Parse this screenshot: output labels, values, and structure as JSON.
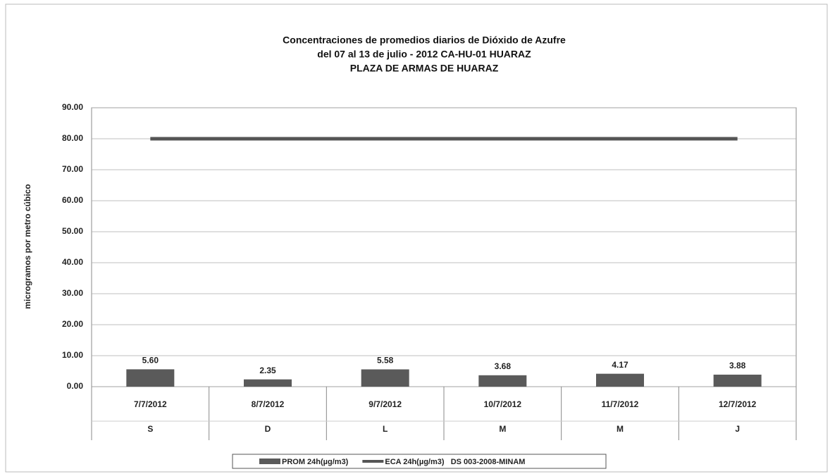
{
  "chart_data": {
    "type": "bar_line",
    "title": [
      "Concentraciones de promedios diarios de Dióxido de Azufre",
      "del 07 al 13 de julio - 2012  CA-HU-01 HUARAZ",
      "PLAZA DE ARMAS DE HUARAZ"
    ],
    "ylabel": "microgramos por metro cúbico",
    "categories": [
      "7/7/2012",
      "8/7/2012",
      "9/7/2012",
      "10/7/2012",
      "11/7/2012",
      "12/7/2012"
    ],
    "category_sublabels": [
      "S",
      "D",
      "L",
      "M",
      "M",
      "J"
    ],
    "series": [
      {
        "name": "PROM 24h(µg/m3)",
        "kind": "bar",
        "color": "#5a5a5a",
        "values": [
          5.6,
          2.35,
          5.58,
          3.68,
          4.17,
          3.88
        ],
        "value_labels": [
          "5.60",
          "2.35",
          "5.58",
          "3.68",
          "4.17",
          "3.88"
        ]
      },
      {
        "name": "ECA 24h(µg/m3)   DS 003-2008-MINAM",
        "kind": "line",
        "color": "#555555",
        "values": [
          80,
          80,
          80,
          80,
          80,
          80
        ]
      }
    ],
    "ylim": [
      0,
      90
    ],
    "yticks": [
      {
        "value": 0,
        "label": "0.00"
      },
      {
        "value": 10,
        "label": "10.00"
      },
      {
        "value": 20,
        "label": "20.00"
      },
      {
        "value": 30,
        "label": "30.00"
      },
      {
        "value": 40,
        "label": "40.00"
      },
      {
        "value": 50,
        "label": "50.00"
      },
      {
        "value": 60,
        "label": "60.00"
      },
      {
        "value": 70,
        "label": "70.00"
      },
      {
        "value": 80,
        "label": "80.00"
      },
      {
        "value": 90,
        "label": "90.00"
      }
    ],
    "grid": true,
    "legend": "bottom"
  }
}
